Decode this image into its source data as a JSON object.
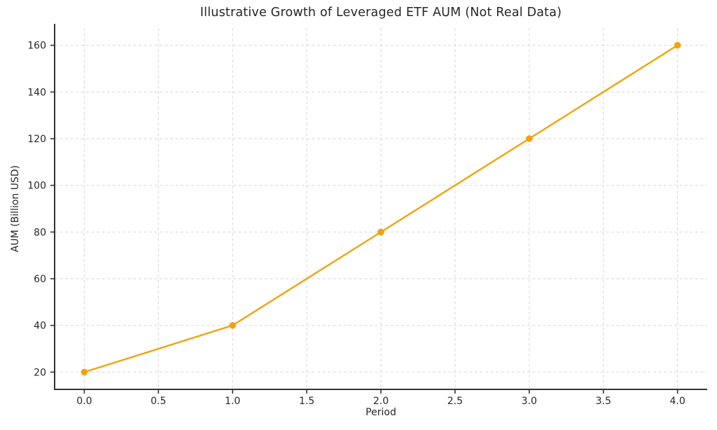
{
  "page": {
    "background": "#ffffff"
  },
  "chart_data": {
    "type": "line",
    "title": "Illustrative Growth of Leveraged ETF AUM (Not Real Data)",
    "xlabel": "Period",
    "ylabel": "AUM (Billion USD)",
    "x": [
      0,
      1,
      2,
      3,
      4
    ],
    "y": [
      20,
      40,
      80,
      120,
      160
    ],
    "x_ticks": [
      0.0,
      0.5,
      1.0,
      1.5,
      2.0,
      2.5,
      3.0,
      3.5,
      4.0
    ],
    "x_tick_labels": [
      "0.0",
      "0.5",
      "1.0",
      "1.5",
      "2.0",
      "2.5",
      "3.0",
      "3.5",
      "4.0"
    ],
    "y_ticks": [
      20,
      40,
      60,
      80,
      100,
      120,
      140,
      160
    ],
    "y_tick_labels": [
      "20",
      "40",
      "60",
      "80",
      "100",
      "120",
      "140",
      "160"
    ],
    "xlim": [
      -0.2,
      4.2
    ],
    "ylim": [
      12.6,
      167.4
    ],
    "grid": true,
    "grid_style": "dashed",
    "legend": "none",
    "line_color": "#F0A30D",
    "marker": "circle",
    "colors": {
      "grid": "#DCDCDC",
      "spine": "#333333",
      "tick": "#333333",
      "text": "#262626"
    }
  }
}
